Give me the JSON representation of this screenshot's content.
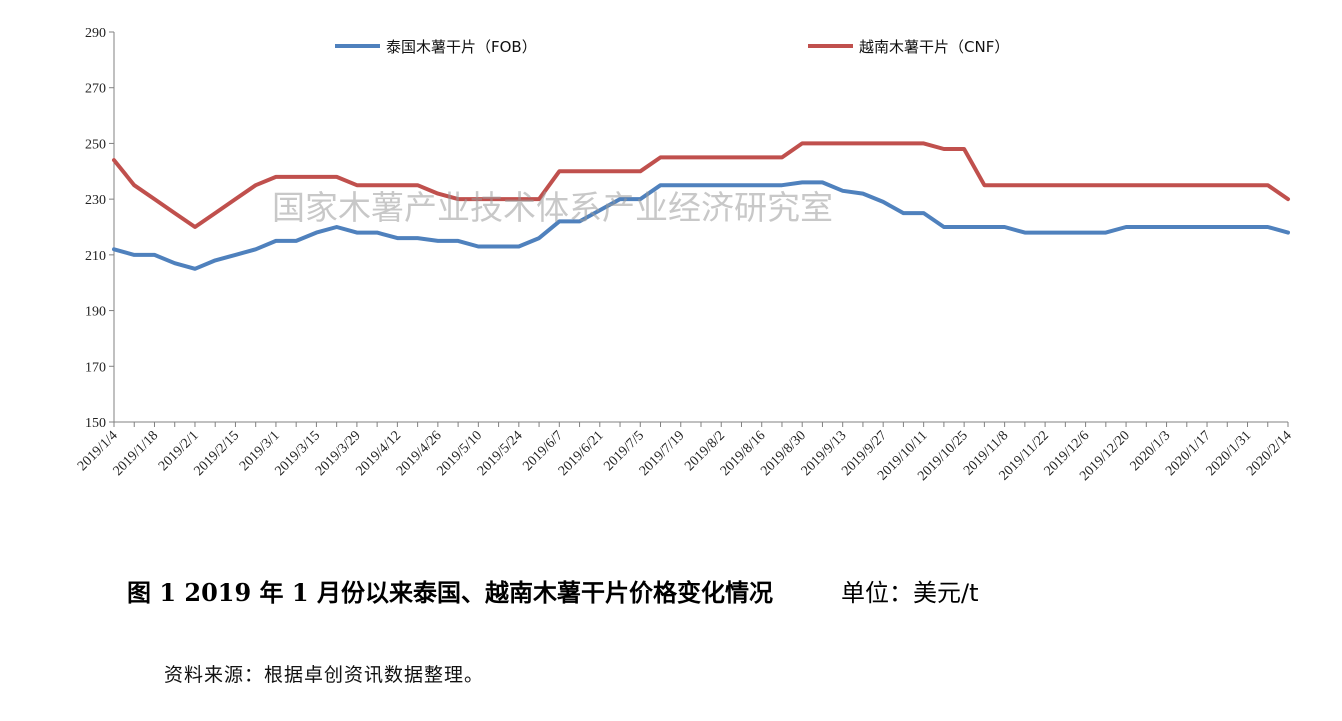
{
  "chart_data": {
    "type": "line",
    "title": "图 1   2019 年 1 月份以来泰国、越南木薯干片价格变化情况",
    "unit_label": "单位：美元/t",
    "ylim": [
      150,
      290
    ],
    "yticks": [
      150,
      170,
      190,
      210,
      230,
      250,
      270,
      290
    ],
    "grid": false,
    "legend_position": "top",
    "x_tick_labels": [
      "2019/1/4",
      "2019/1/18",
      "2019/2/1",
      "2019/2/15",
      "2019/3/1",
      "2019/3/15",
      "2019/3/29",
      "2019/4/12",
      "2019/4/26",
      "2019/5/10",
      "2019/5/24",
      "2019/6/7",
      "2019/6/21",
      "2019/7/5",
      "2019/7/19",
      "2019/8/2",
      "2019/8/16",
      "2019/8/30",
      "2019/9/13",
      "2019/9/27",
      "2019/10/11",
      "2019/10/25",
      "2019/11/8",
      "2019/11/22",
      "2019/12/6",
      "2019/12/20",
      "2020/1/3",
      "2020/1/17",
      "2020/1/31",
      "2020/2/14"
    ],
    "x": [
      "2019/1/4",
      "2019/1/11",
      "2019/1/18",
      "2019/1/25",
      "2019/2/1",
      "2019/2/8",
      "2019/2/15",
      "2019/2/22",
      "2019/3/1",
      "2019/3/8",
      "2019/3/15",
      "2019/3/22",
      "2019/3/29",
      "2019/4/5",
      "2019/4/12",
      "2019/4/19",
      "2019/4/26",
      "2019/5/3",
      "2019/5/10",
      "2019/5/17",
      "2019/5/24",
      "2019/5/31",
      "2019/6/7",
      "2019/6/14",
      "2019/6/21",
      "2019/6/28",
      "2019/7/5",
      "2019/7/12",
      "2019/7/19",
      "2019/7/26",
      "2019/8/2",
      "2019/8/9",
      "2019/8/16",
      "2019/8/23",
      "2019/8/30",
      "2019/9/6",
      "2019/9/13",
      "2019/9/20",
      "2019/9/27",
      "2019/10/4",
      "2019/10/11",
      "2019/10/18",
      "2019/10/25",
      "2019/11/1",
      "2019/11/8",
      "2019/11/15",
      "2019/11/22",
      "2019/11/29",
      "2019/12/6",
      "2019/12/13",
      "2019/12/20",
      "2019/12/27",
      "2020/1/3",
      "2020/1/10",
      "2020/1/17",
      "2020/1/24",
      "2020/1/31",
      "2020/2/7",
      "2020/2/14"
    ],
    "series": [
      {
        "name": "泰国木薯干片（FOB）",
        "color": "#4f81bd",
        "values": [
          212,
          210,
          210,
          207,
          205,
          208,
          210,
          212,
          215,
          215,
          218,
          220,
          218,
          218,
          216,
          216,
          215,
          215,
          213,
          213,
          213,
          216,
          222,
          222,
          226,
          230,
          230,
          235,
          235,
          235,
          235,
          235,
          235,
          235,
          236,
          236,
          233,
          232,
          229,
          225,
          225,
          220,
          220,
          220,
          220,
          218,
          218,
          218,
          218,
          218,
          220,
          220,
          220,
          220,
          220,
          220,
          220,
          220,
          218
        ]
      },
      {
        "name": "越南木薯干片（CNF）",
        "color": "#c0504d",
        "values": [
          244,
          235,
          230,
          225,
          220,
          225,
          230,
          235,
          238,
          238,
          238,
          238,
          235,
          235,
          235,
          235,
          232,
          230,
          230,
          230,
          230,
          230,
          240,
          240,
          240,
          240,
          240,
          245,
          245,
          245,
          245,
          245,
          245,
          245,
          250,
          250,
          250,
          250,
          250,
          250,
          250,
          248,
          248,
          235,
          235,
          235,
          235,
          235,
          235,
          235,
          235,
          235,
          235,
          235,
          235,
          235,
          235,
          235,
          230
        ]
      }
    ]
  },
  "watermark": "国家木薯产业技术体系产业经济研究室",
  "caption": {
    "title": "图 1   2019 年 1 月份以来泰国、越南木薯干片价格变化情况",
    "unit": "单位：美元/t"
  },
  "source_note": "资料来源：根据卓创资讯数据整理。"
}
